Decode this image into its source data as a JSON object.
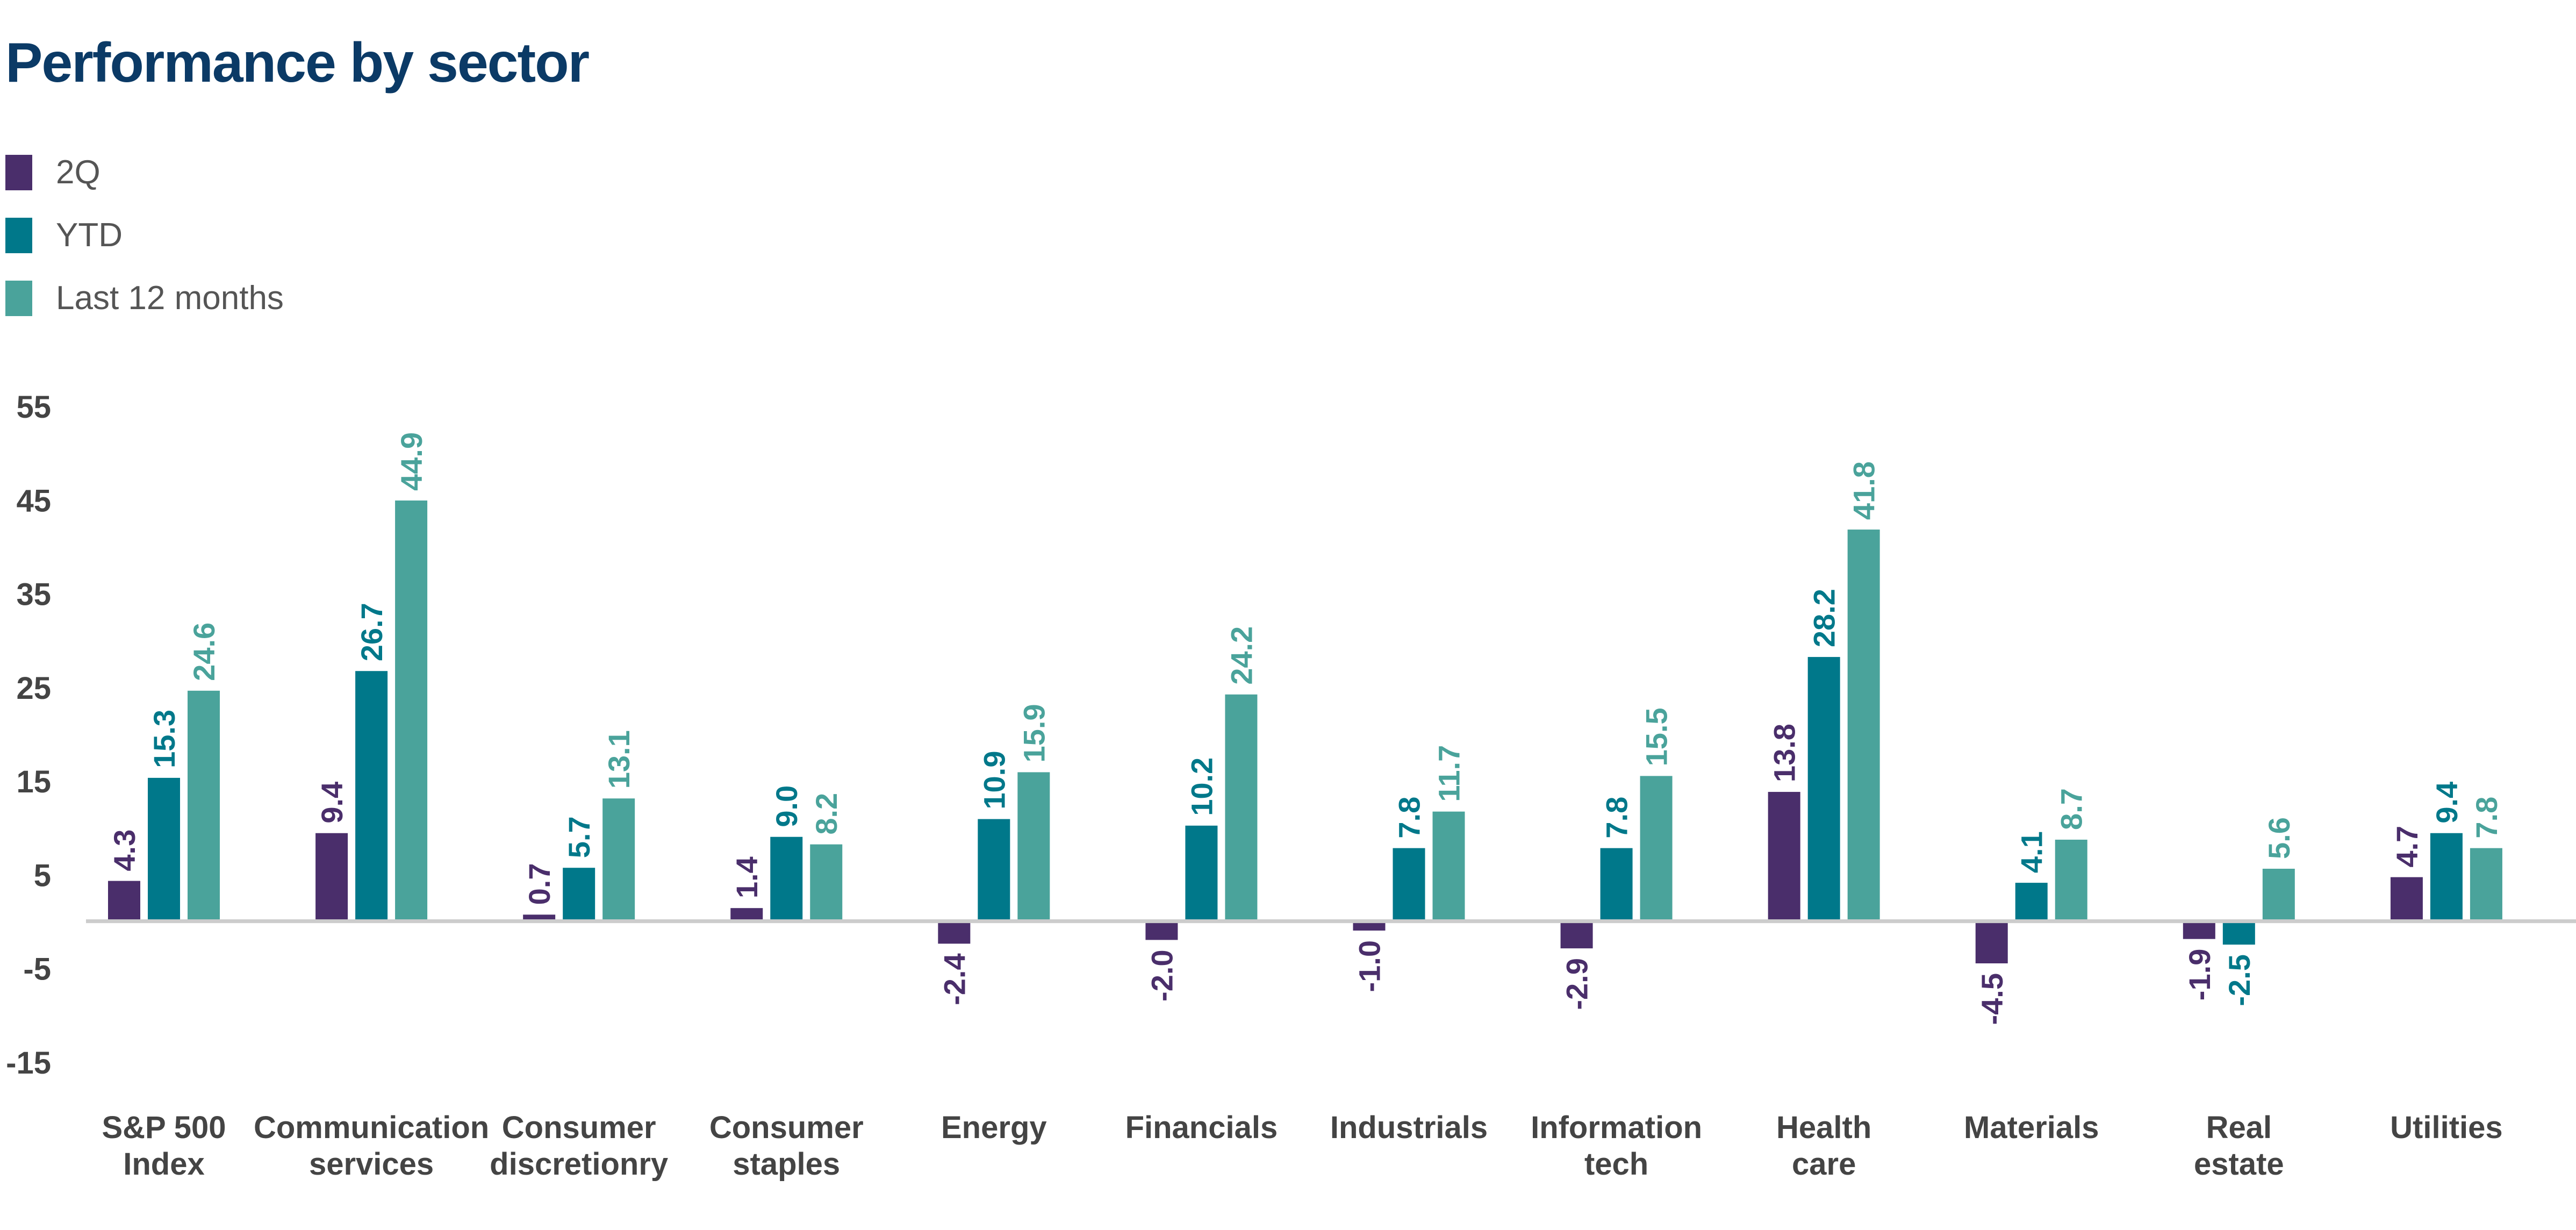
{
  "title": "Performance by sector",
  "colors": {
    "title": "#0b3a66",
    "q2": "#4a2e6b",
    "ytd": "#00788a",
    "ltm": "#4aa39b",
    "axis": "#cccccc",
    "tick": "#444444"
  },
  "chart_data": {
    "type": "bar",
    "title": "Performance by sector",
    "xlabel": "",
    "ylabel": "",
    "ylim": [
      -15,
      55
    ],
    "yticks": [
      55,
      45,
      35,
      25,
      15,
      5,
      -5,
      -15
    ],
    "grid": false,
    "legend_position": "top-left",
    "categories": [
      [
        "S&P 500",
        "Index"
      ],
      [
        "Communication",
        "services"
      ],
      [
        "Consumer",
        "discretionry"
      ],
      [
        "Consumer",
        "staples"
      ],
      [
        "Energy"
      ],
      [
        "Financials"
      ],
      [
        "Industrials"
      ],
      [
        "Information",
        "tech"
      ],
      [
        "Health",
        "care"
      ],
      [
        "Materials"
      ],
      [
        "Real",
        "estate"
      ],
      [
        "Utilities"
      ]
    ],
    "series": [
      {
        "name": "2Q",
        "color": "#4a2e6b",
        "values": [
          4.3,
          9.4,
          0.7,
          1.4,
          -2.4,
          -2.0,
          -1.0,
          -2.9,
          13.8,
          -4.5,
          -1.9,
          4.7
        ],
        "labels": [
          "4.3",
          "9.4",
          "0.7",
          "1.4",
          "-2.4",
          "-2.0",
          "-1.0",
          "-2.9",
          "13.8",
          "-4.5",
          "-1.9",
          "4.7"
        ]
      },
      {
        "name": "YTD",
        "color": "#00788a",
        "values": [
          15.3,
          26.7,
          5.7,
          9.0,
          10.9,
          10.2,
          7.8,
          7.8,
          28.2,
          4.1,
          -2.5,
          9.4
        ],
        "labels": [
          "15.3",
          "26.7",
          "5.7",
          "9.0",
          "10.9",
          "10.2",
          "7.8",
          "7.8",
          "28.2",
          "4.1",
          "-2.5",
          "9.4"
        ]
      },
      {
        "name": "Last 12 months",
        "color": "#4aa39b",
        "values": [
          24.6,
          44.9,
          13.1,
          8.2,
          15.9,
          24.2,
          11.7,
          15.5,
          41.8,
          8.7,
          5.6,
          7.8
        ],
        "labels": [
          "24.6",
          "44.9",
          "13.1",
          "8.2",
          "15.9",
          "24.2",
          "11.7",
          "15.5",
          "41.8",
          "8.7",
          "5.6",
          "7.8"
        ]
      }
    ]
  }
}
